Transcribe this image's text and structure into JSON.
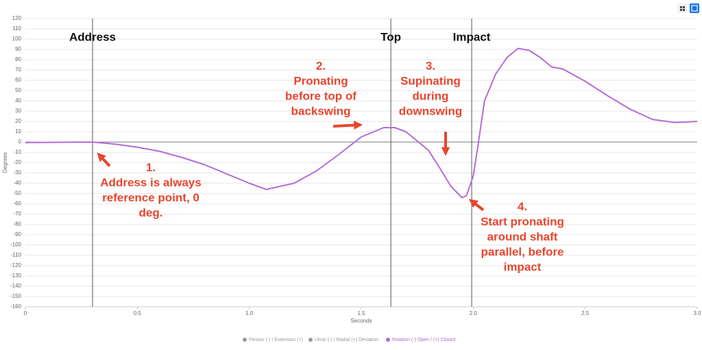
{
  "chart_data": {
    "type": "line",
    "x_label": "Seconds",
    "y_label": "Degrees",
    "xlim": [
      0,
      3
    ],
    "ylim": [
      -160,
      120
    ],
    "xticks": [
      0,
      0.5,
      {
        "value": 1,
        "label": "1.0"
      },
      1.5,
      {
        "value": 2,
        "label": "2.0"
      },
      2.5,
      {
        "value": 3,
        "label": "3.0"
      }
    ],
    "yticks": [
      -160,
      -150,
      -140,
      -130,
      -120,
      -110,
      -100,
      -90,
      -80,
      -70,
      -60,
      -50,
      -40,
      -30,
      -20,
      -10,
      0,
      10,
      20,
      30,
      40,
      50,
      60,
      70,
      80,
      90,
      100,
      110,
      120
    ],
    "grid": true,
    "x": [
      0,
      0.3,
      0.4,
      0.5,
      0.6,
      0.7,
      0.8,
      0.9,
      1.0,
      1.075,
      1.2,
      1.3,
      1.4,
      1.5,
      1.6,
      1.65,
      1.7,
      1.8,
      1.85,
      1.9,
      1.95,
      1.97,
      2.0,
      2.02,
      2.05,
      2.1,
      2.15,
      2.2,
      2.25,
      2.3,
      2.35,
      2.4,
      2.45,
      2.5,
      2.6,
      2.7,
      2.8,
      2.9,
      3.0
    ],
    "series": [
      {
        "name": "Rotation (-) Open / (+) Closed",
        "color": "#b36bd6",
        "values": [
          -0.5,
          0,
          -2,
          -5,
          -9,
          -15,
          -22,
          -31,
          -40,
          -46,
          -40,
          -28,
          -12,
          5,
          14,
          14,
          10,
          -8,
          -25,
          -43,
          -54,
          -52,
          -33,
          -5,
          40,
          66,
          82,
          91,
          89,
          82,
          73,
          71,
          65,
          59,
          45,
          32,
          22,
          19,
          20
        ]
      }
    ],
    "legend_items": [
      {
        "name": "Flexion (-) / Extension (+)",
        "color": "#999999"
      },
      {
        "name": "Ulnar (-) / Radial (+) Deviation",
        "color": "#999999"
      },
      {
        "name": "Rotation (-) Open / (+) Closed",
        "color": "#b36bd6"
      }
    ],
    "events": [
      {
        "label": "Address",
        "x": 0.3
      },
      {
        "label": "Top",
        "x": 1.632
      },
      {
        "label": "Impact",
        "x": 1.993
      }
    ],
    "annotations": [
      {
        "lines": [
          "1.",
          "Address is always",
          "reference point, 0",
          "deg."
        ]
      },
      {
        "lines": [
          "2.",
          "Pronating",
          "before top of",
          "backswing"
        ]
      },
      {
        "lines": [
          "3.",
          "Supinating",
          "during",
          "downswing"
        ]
      },
      {
        "lines": [
          "4.",
          "Start pronating",
          "around shaft",
          "parallel, before",
          "impact"
        ]
      }
    ]
  }
}
